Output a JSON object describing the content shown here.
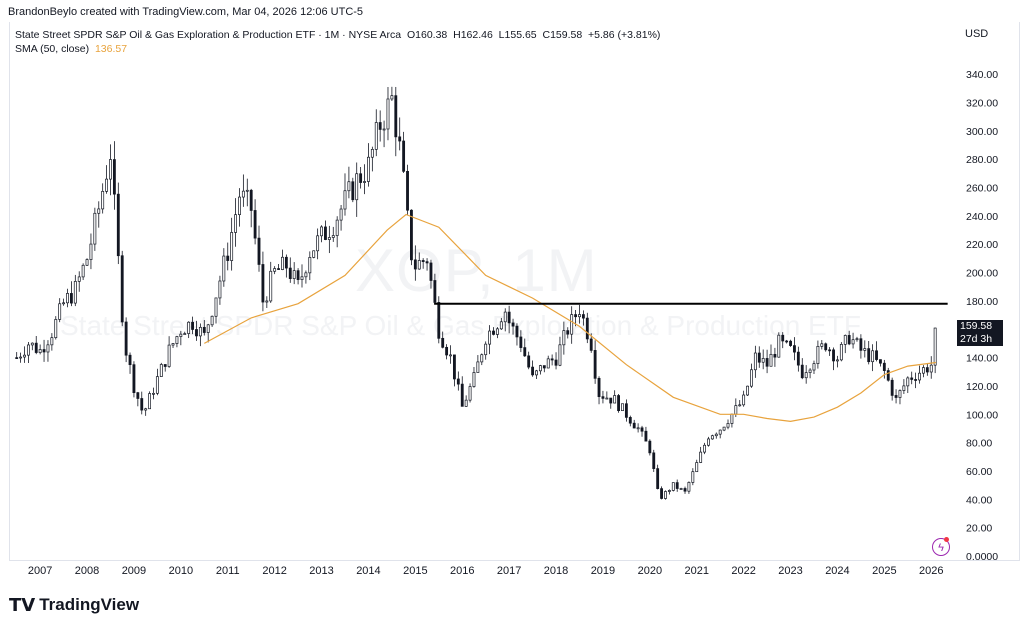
{
  "header": {
    "byline": "BrandonBeylo created with TradingView.com, Mar 04, 2026 12:06 UTC-5"
  },
  "legend": {
    "symbol_text": "State Street SPDR S&P Oil & Gas Exploration & Production ETF · 1M · NYSE Arca",
    "open_label": "O",
    "open": "160.38",
    "high_label": "H",
    "high": "162.46",
    "low_label": "L",
    "low": "155.65",
    "close_label": "C",
    "close": "159.58",
    "change": "+5.86 (+3.81%)",
    "sma_label": "SMA (50, close)",
    "sma_value": "136.57"
  },
  "currency": "USD",
  "watermark": {
    "ticker": "XOP, 1M",
    "name": "State Street SPDR S&P Oil & Gas Exploration & Production ETF"
  },
  "price_tag": {
    "price": "159.58",
    "countdown": "27d 3h"
  },
  "brand": {
    "logo_text": "TradingView"
  },
  "icons": {
    "logo": "tradingview-logo-icon",
    "flash": "flash-icon"
  },
  "colors": {
    "candle_up_body": "#ffffff",
    "candle_down_body": "#131722",
    "candle_outline": "#131722",
    "sma": "#e8a33d",
    "resistance_line": "#000000",
    "grid_text": "#131722"
  },
  "chart_data": {
    "type": "candlestick",
    "title": "State Street SPDR S&P Oil & Gas Exploration & Production ETF · 1M · NYSE Arca",
    "interval": "1M",
    "y_ticks": [
      "0.0000",
      "20.00",
      "40.00",
      "60.00",
      "80.00",
      "100.00",
      "120.00",
      "140.00",
      "160.00",
      "180.00",
      "200.00",
      "220.00",
      "240.00",
      "260.00",
      "280.00",
      "300.00",
      "320.00",
      "340.00"
    ],
    "y_tick_values": [
      0,
      20,
      40,
      60,
      80,
      100,
      120,
      140,
      160,
      180,
      200,
      220,
      240,
      260,
      280,
      300,
      320,
      340
    ],
    "x_ticks": [
      "2007",
      "2008",
      "2009",
      "2010",
      "2011",
      "2012",
      "2013",
      "2014",
      "2015",
      "2016",
      "2017",
      "2018",
      "2019",
      "2020",
      "2021",
      "2022",
      "2023",
      "2024",
      "2025",
      "2026"
    ],
    "x_tick_years": [
      2007,
      2008,
      2009,
      2010,
      2011,
      2012,
      2013,
      2014,
      2015,
      2016,
      2017,
      2018,
      2019,
      2020,
      2021,
      2022,
      2023,
      2024,
      2025,
      2026
    ],
    "ylim": [
      0,
      350
    ],
    "xlim": [
      2006.4,
      2026.4
    ],
    "y_axis_side": "right",
    "grid": false,
    "close_anchors": [
      [
        2006.5,
        140
      ],
      [
        2006.75,
        150
      ],
      [
        2007.0,
        145
      ],
      [
        2007.25,
        158
      ],
      [
        2007.5,
        178
      ],
      [
        2007.75,
        188
      ],
      [
        2008.0,
        210
      ],
      [
        2008.25,
        245
      ],
      [
        2008.5,
        285
      ],
      [
        2008.65,
        215
      ],
      [
        2008.8,
        150
      ],
      [
        2009.0,
        120
      ],
      [
        2009.2,
        100
      ],
      [
        2009.5,
        125
      ],
      [
        2009.75,
        145
      ],
      [
        2010.0,
        160
      ],
      [
        2010.25,
        165
      ],
      [
        2010.5,
        155
      ],
      [
        2010.75,
        185
      ],
      [
        2011.0,
        215
      ],
      [
        2011.25,
        255
      ],
      [
        2011.5,
        245
      ],
      [
        2011.75,
        180
      ],
      [
        2012.0,
        200
      ],
      [
        2012.25,
        205
      ],
      [
        2012.5,
        190
      ],
      [
        2012.75,
        215
      ],
      [
        2013.0,
        225
      ],
      [
        2013.25,
        235
      ],
      [
        2013.5,
        250
      ],
      [
        2013.75,
        265
      ],
      [
        2014.0,
        275
      ],
      [
        2014.25,
        305
      ],
      [
        2014.5,
        322
      ],
      [
        2014.7,
        280
      ],
      [
        2014.9,
        215
      ],
      [
        2015.0,
        205
      ],
      [
        2015.25,
        210
      ],
      [
        2015.5,
        160
      ],
      [
        2015.75,
        140
      ],
      [
        2016.0,
        105
      ],
      [
        2016.25,
        125
      ],
      [
        2016.5,
        155
      ],
      [
        2016.75,
        165
      ],
      [
        2016.9,
        175
      ],
      [
        2017.0,
        165
      ],
      [
        2017.25,
        150
      ],
      [
        2017.5,
        125
      ],
      [
        2017.75,
        135
      ],
      [
        2018.0,
        140
      ],
      [
        2018.25,
        160
      ],
      [
        2018.5,
        175
      ],
      [
        2018.75,
        150
      ],
      [
        2018.9,
        115
      ],
      [
        2019.25,
        110
      ],
      [
        2019.5,
        100
      ],
      [
        2019.75,
        90
      ],
      [
        2020.0,
        75
      ],
      [
        2020.2,
        40
      ],
      [
        2020.5,
        50
      ],
      [
        2020.75,
        45
      ],
      [
        2021.0,
        65
      ],
      [
        2021.25,
        85
      ],
      [
        2021.5,
        90
      ],
      [
        2021.75,
        100
      ],
      [
        2022.0,
        110
      ],
      [
        2022.25,
        140
      ],
      [
        2022.5,
        135
      ],
      [
        2022.75,
        150
      ],
      [
        2023.0,
        145
      ],
      [
        2023.25,
        130
      ],
      [
        2023.5,
        140
      ],
      [
        2023.75,
        150
      ],
      [
        2024.0,
        140
      ],
      [
        2024.25,
        155
      ],
      [
        2024.5,
        145
      ],
      [
        2024.75,
        140
      ],
      [
        2025.0,
        130
      ],
      [
        2025.25,
        110
      ],
      [
        2025.5,
        125
      ],
      [
        2025.75,
        130
      ],
      [
        2026.0,
        135
      ],
      [
        2026.1,
        159.58
      ]
    ],
    "series": [
      {
        "name": "SMA (50, close)",
        "type": "line",
        "last_value": 136.57
      },
      {
        "name": "SMA points",
        "points": [
          [
            2010.5,
            150
          ],
          [
            2011.5,
            168
          ],
          [
            2012.5,
            178
          ],
          [
            2013.5,
            198
          ],
          [
            2014.4,
            230
          ],
          [
            2014.8,
            241
          ],
          [
            2015.5,
            232
          ],
          [
            2016.5,
            198
          ],
          [
            2017.5,
            182
          ],
          [
            2018.5,
            162
          ],
          [
            2019.5,
            135
          ],
          [
            2020.5,
            112
          ],
          [
            2021.5,
            100
          ],
          [
            2022.0,
            100
          ],
          [
            2022.5,
            97
          ],
          [
            2023.0,
            95
          ],
          [
            2023.5,
            98
          ],
          [
            2024.0,
            105
          ],
          [
            2024.5,
            115
          ],
          [
            2025.0,
            128
          ],
          [
            2025.5,
            134
          ],
          [
            2026.1,
            136.57
          ]
        ]
      }
    ],
    "horizontal_lines": [
      {
        "value": 178,
        "x_start": 2015.4,
        "x_end": 2026.35,
        "color": "#000000"
      }
    ]
  }
}
